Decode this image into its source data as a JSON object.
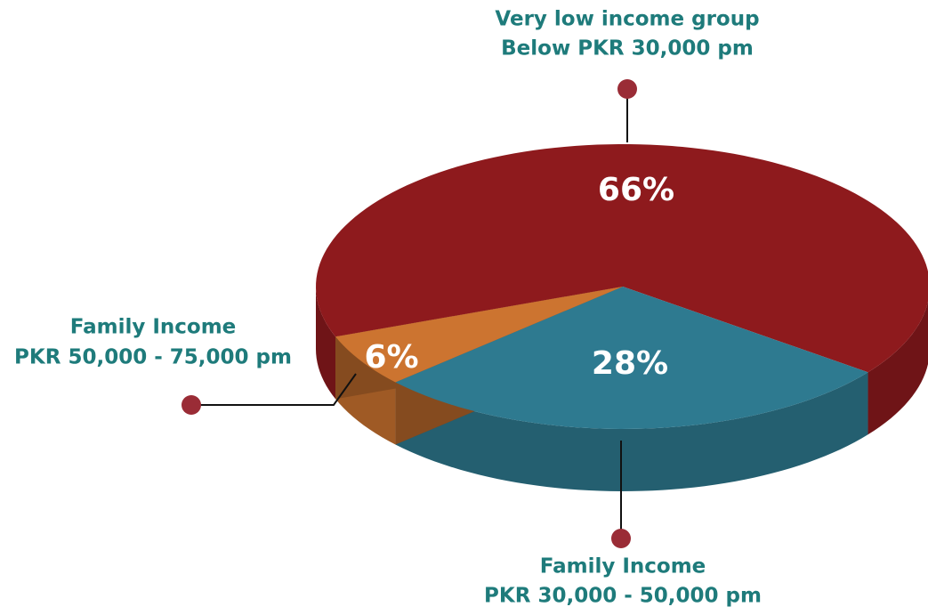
{
  "chart_data": {
    "type": "pie",
    "categories": [
      "Very low income group",
      "Family Income",
      "Family Income"
    ],
    "descriptions": [
      "Below PKR 30,000 pm",
      "PKR 30,000 - 50,000 pm",
      "PKR 50,000 - 75,000 pm"
    ],
    "values": [
      66,
      28,
      6
    ],
    "value_labels": [
      "66%",
      "28%",
      "6%"
    ],
    "colors": [
      "#8e1a1d",
      "#2e7a90",
      "#cc7430"
    ]
  }
}
